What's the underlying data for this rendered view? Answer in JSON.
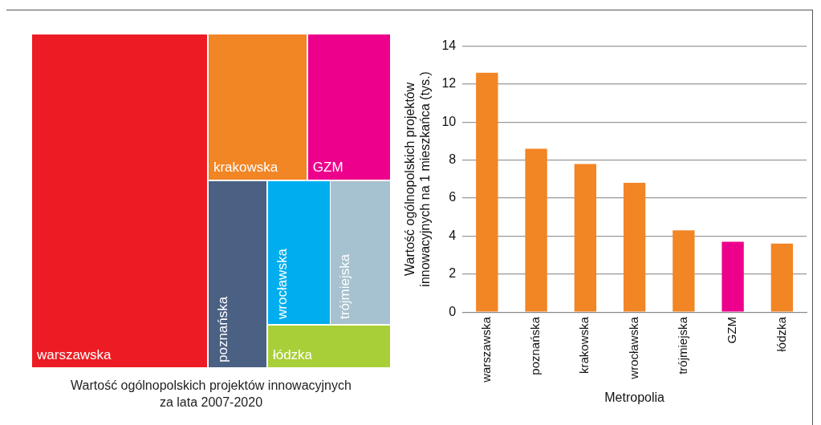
{
  "chart_data": [
    {
      "type": "other",
      "title": "Wartość ogólnopolskich projektów innowacyjnych\nza lata 2007-2020",
      "categories": [
        "warszawska",
        "krakowska",
        "GZM",
        "poznańska",
        "wrocławska",
        "trójmiejska",
        "łódzka"
      ],
      "colors": [
        "#ed1c24",
        "#f28524",
        "#ec008c",
        "#4a6184",
        "#00aeef",
        "#a6c1cf",
        "#a8cf38"
      ]
    },
    {
      "type": "bar",
      "xlabel": "Metropolia",
      "ylabel": "Wartość ogólnopolskich projektów\ninnowacyjnych na 1 mieszkańca (tys.)",
      "categories": [
        "warszawska",
        "poznańska",
        "krakowska",
        "wrocławska",
        "trójmiejska",
        "GZM",
        "łódzka"
      ],
      "values": [
        12.6,
        8.6,
        7.8,
        6.8,
        4.3,
        3.7,
        3.6
      ],
      "colors": [
        "#f28524",
        "#f28524",
        "#f28524",
        "#f28524",
        "#f28524",
        "#ec008c",
        "#f28524"
      ],
      "ylim": [
        0,
        14
      ],
      "yticks": [
        0,
        2,
        4,
        6,
        8,
        10,
        12,
        14
      ],
      "grid": "y"
    }
  ]
}
